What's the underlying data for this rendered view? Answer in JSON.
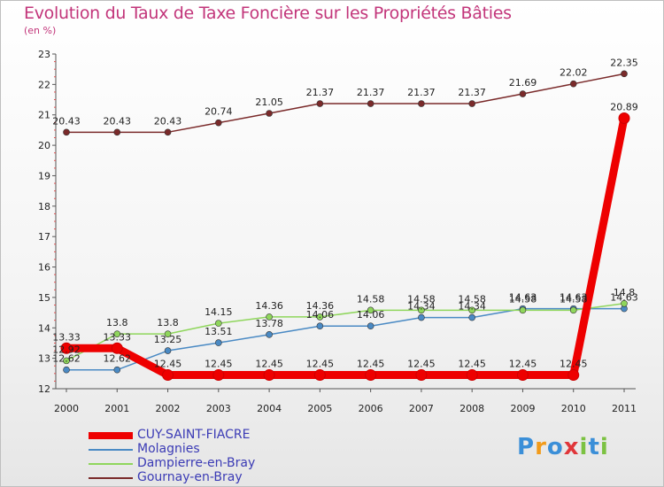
{
  "title": "Evolution du Taux de Taxe Foncière sur les Propriétés Bâties",
  "unit": "(en %)",
  "chart_data": {
    "type": "line",
    "title": "Evolution du Taux de Taxe Foncière sur les Propriétés Bâties",
    "ylabel": "(en %)",
    "xlabel": "",
    "ylim": [
      12,
      23
    ],
    "yticks": [
      "12",
      "13",
      "14",
      "15",
      "16",
      "17",
      "18",
      "19",
      "20",
      "21",
      "22",
      "23"
    ],
    "categories": [
      "2000",
      "2001",
      "2002",
      "2003",
      "2004",
      "2005",
      "2006",
      "2007",
      "2008",
      "2009",
      "2010",
      "2011"
    ],
    "series": [
      {
        "name": "CUY-SAINT-FIACRE",
        "color": "#ee0000",
        "values": [
          13.33,
          13.33,
          12.45,
          12.45,
          12.45,
          12.45,
          12.45,
          12.45,
          12.45,
          12.45,
          12.45,
          20.89
        ],
        "labels": [
          "13.33",
          "13.33",
          "12.45",
          "12.45",
          "12.45",
          "12.45",
          "12.45",
          "12.45",
          "12.45",
          "12.45",
          "12.45",
          "20.89"
        ]
      },
      {
        "name": "Molagnies",
        "color": "#4a8ac4",
        "values": [
          12.62,
          12.62,
          13.25,
          13.51,
          13.78,
          14.06,
          14.06,
          14.34,
          14.34,
          14.63,
          14.63,
          14.63
        ],
        "labels": [
          "12.62",
          "12.62",
          "13.25",
          "13.51",
          "13.78",
          "14.06",
          "14.06",
          "14.34",
          "14.34",
          "14.63",
          "14.63",
          "14.63"
        ]
      },
      {
        "name": "Dampierre-en-Bray",
        "color": "#8fd65c",
        "values": [
          12.92,
          13.8,
          13.8,
          14.15,
          14.36,
          14.36,
          14.58,
          14.58,
          14.58,
          14.58,
          14.58,
          14.8
        ],
        "labels": [
          "12.92",
          "13.8",
          "13.8",
          "14.15",
          "14.36",
          "14.36",
          "14.58",
          "14.58",
          "14.58",
          "14.58",
          "14.58",
          "14.8"
        ]
      },
      {
        "name": "Gournay-en-Bray",
        "color": "#7a2a2a",
        "values": [
          20.43,
          20.43,
          20.43,
          20.74,
          21.05,
          21.37,
          21.37,
          21.37,
          21.37,
          21.69,
          22.02,
          22.35
        ],
        "labels": [
          "20.43",
          "20.43",
          "20.43",
          "20.74",
          "21.05",
          "21.37",
          "21.37",
          "21.37",
          "21.37",
          "21.69",
          "22.02",
          "22.35"
        ]
      }
    ]
  },
  "legend": [
    "CUY-SAINT-FIACRE",
    "Molagnies",
    "Dampierre-en-Bray",
    "Gournay-en-Bray"
  ],
  "logo": {
    "letters": [
      "P",
      "r",
      "o",
      "x",
      "i",
      "t",
      "i"
    ],
    "colors": [
      "#3b8fd8",
      "#f29b1a",
      "#3b8fd8",
      "#e0363a",
      "#7cc242",
      "#3b8fd8",
      "#7cc242"
    ]
  }
}
